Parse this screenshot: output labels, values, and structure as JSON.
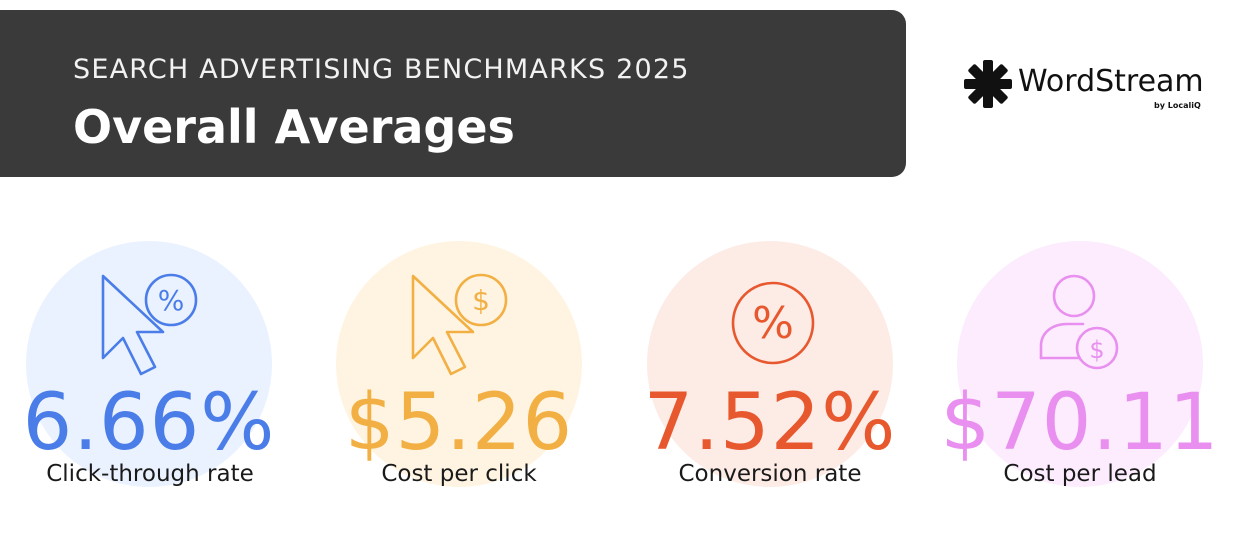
{
  "header": {
    "eyebrow": "SEARCH ADVERTISING BENCHMARKS 2025",
    "title": "Overall Averages"
  },
  "logo": {
    "name": "WordStream",
    "subtitle": "by LocaliQ"
  },
  "stats": [
    {
      "value": "6.66%",
      "label": "Click-through rate",
      "icon": "cursor-percent-icon",
      "color": "#4a7de8",
      "circle_color": "#eaf1ff"
    },
    {
      "value": "$5.26",
      "label": "Cost per click",
      "icon": "cursor-dollar-icon",
      "color": "#f2b044",
      "circle_color": "#fff4e2"
    },
    {
      "value": "7.52%",
      "label": "Conversion rate",
      "icon": "percent-circle-icon",
      "color": "#e8582e",
      "circle_color": "#fdebe6"
    },
    {
      "value": "$70.11",
      "label": "Cost per lead",
      "icon": "person-dollar-icon",
      "color": "#e98ff0",
      "circle_color": "#fcecfd"
    }
  ]
}
